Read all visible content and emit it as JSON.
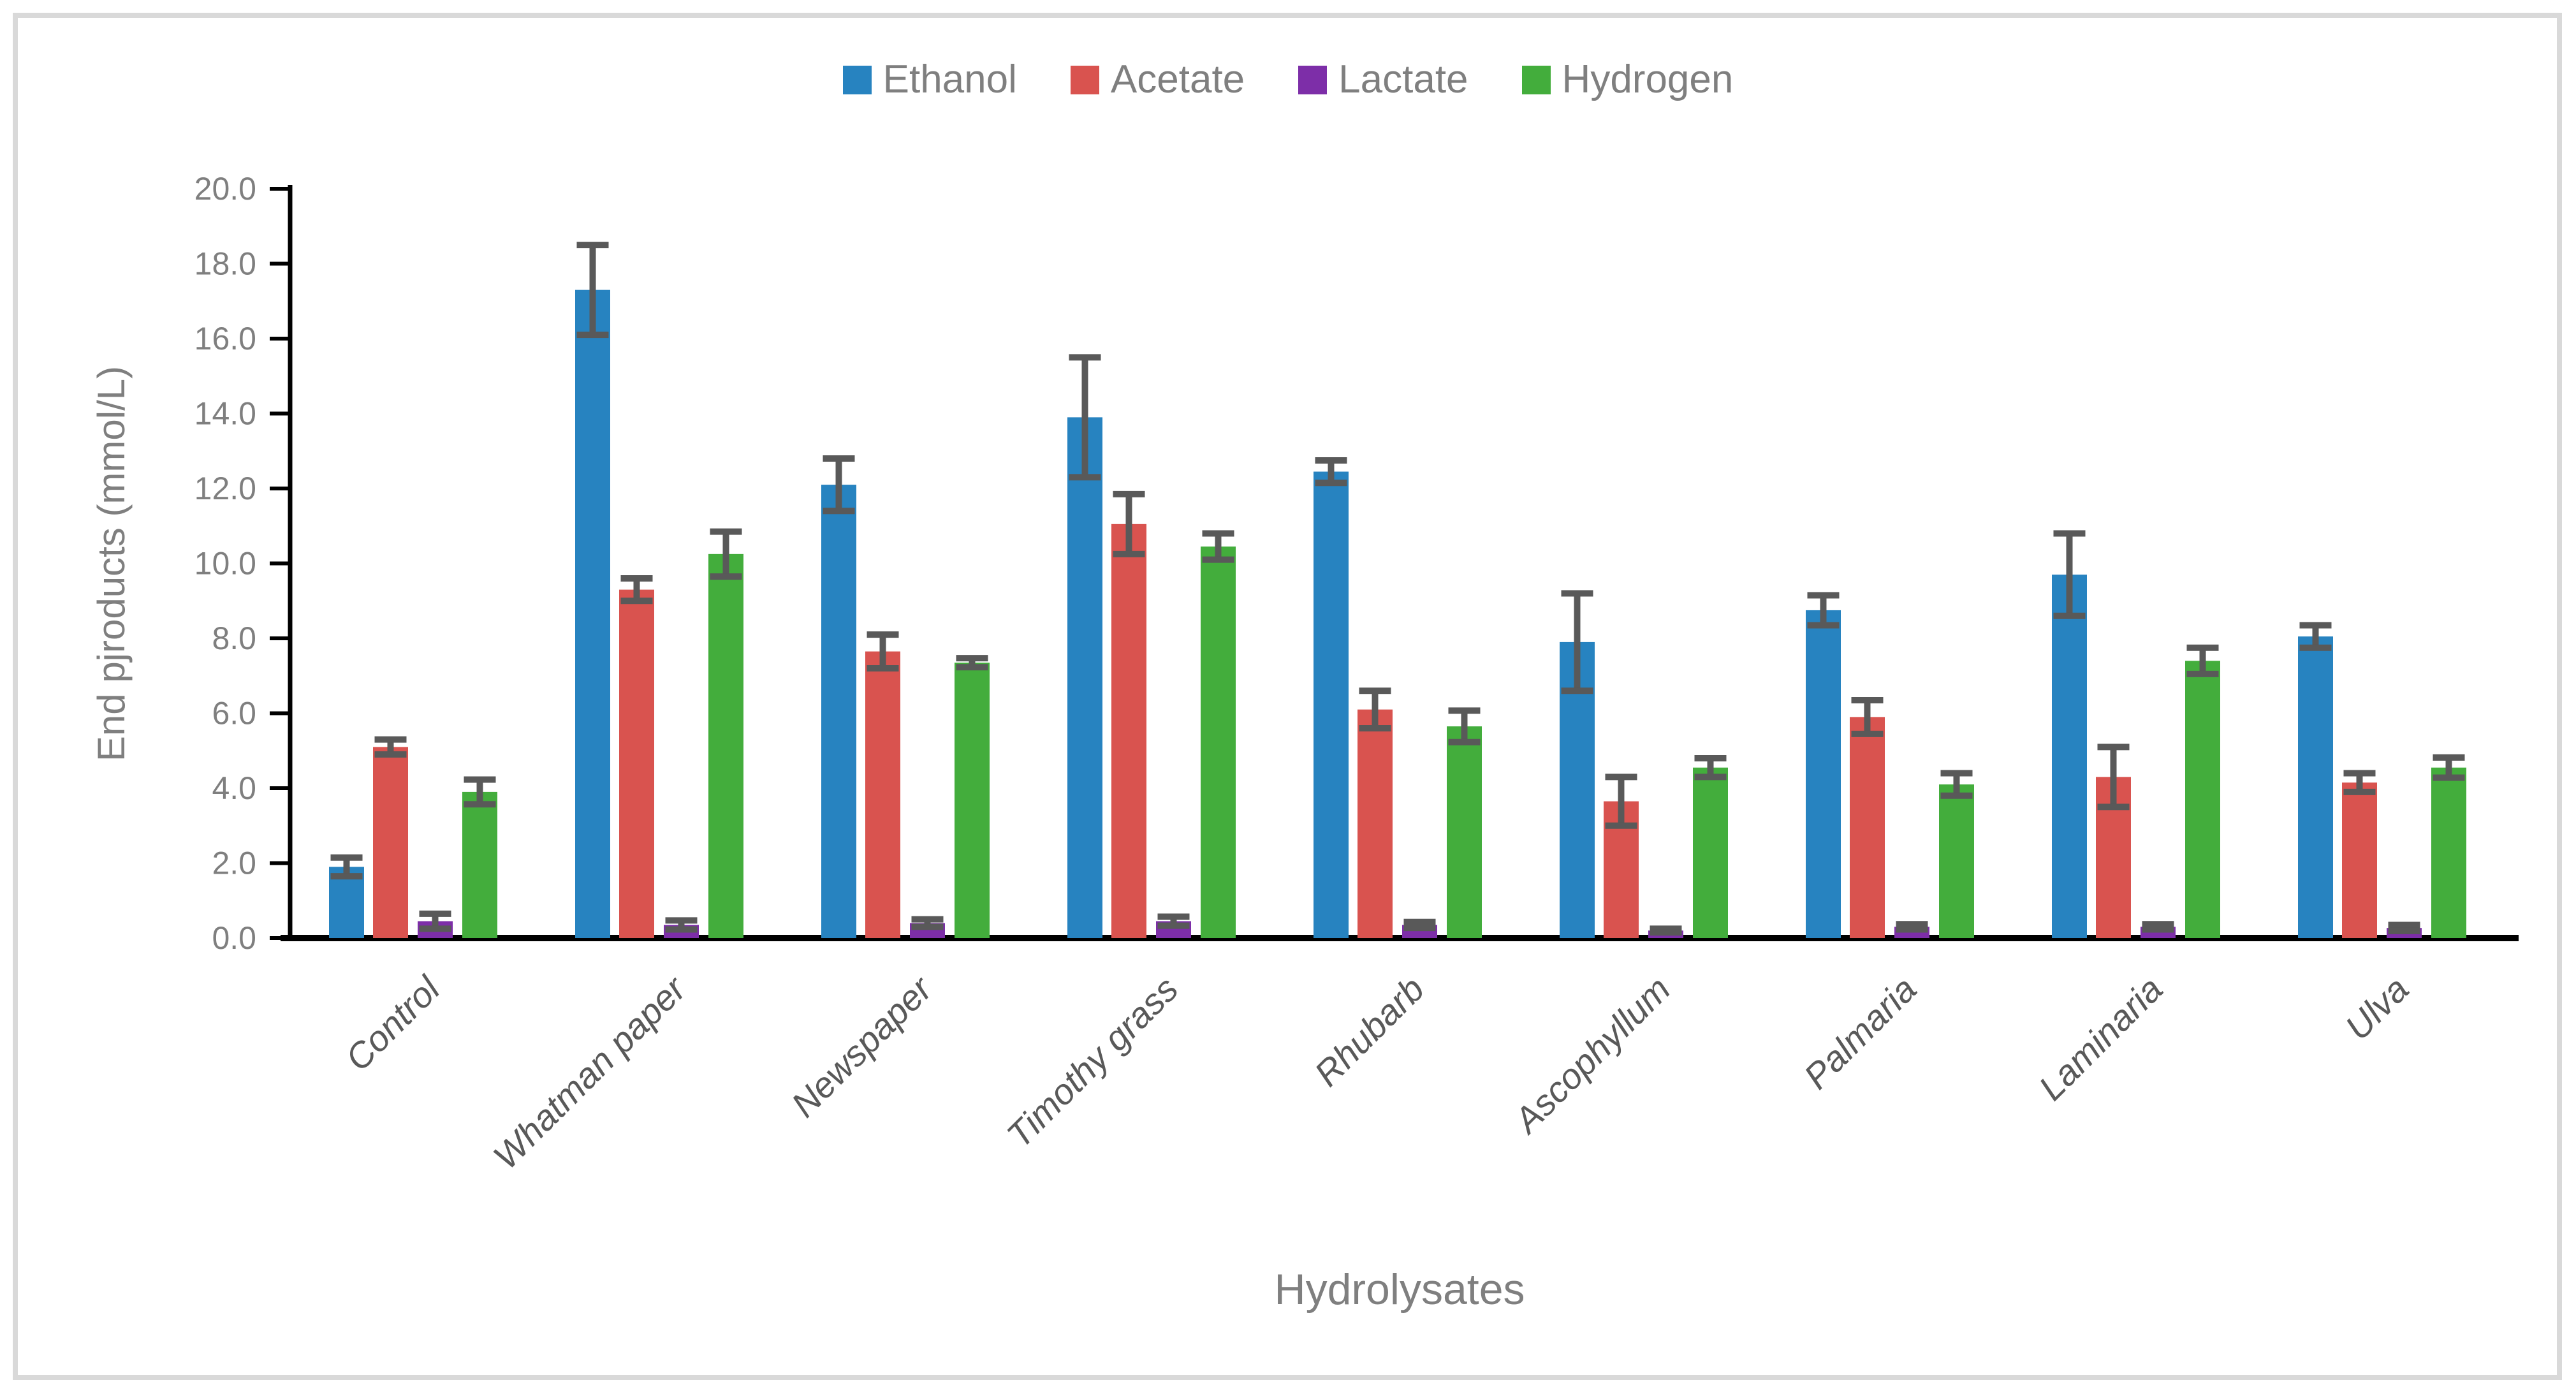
{
  "legend": {
    "items": [
      {
        "label": "Ethanol",
        "color": "#2783C0"
      },
      {
        "label": "Acetate",
        "color": "#D9534F"
      },
      {
        "label": "Lactate",
        "color": "#7D2EA8"
      },
      {
        "label": "Hydrogen",
        "color": "#43AD3C"
      }
    ]
  },
  "y_axis": {
    "title": "End pjroducts (mmol/L)",
    "tick_labels": [
      "0.0",
      "2.0",
      "4.0",
      "6.0",
      "8.0",
      "10.0",
      "12.0",
      "14.0",
      "16.0",
      "18.0",
      "20.0"
    ]
  },
  "x_axis": {
    "title": "Hydrolysates"
  },
  "colors": {
    "axis": "#000000",
    "error_bar": "#595959",
    "tick_text": "#7f7f7f",
    "category_text": "#595959",
    "border": "#d9d9d9"
  },
  "chart_data": {
    "type": "bar",
    "title": "",
    "xlabel": "Hydrolysates",
    "ylabel": "End pjroducts (mmol/L)",
    "ylim": [
      0,
      20
    ],
    "ytick_step": 2,
    "grid": false,
    "legend_position": "top",
    "error_bars": true,
    "categories": [
      "Control",
      "Whatman paper",
      "Newspaper",
      "Timothy grass",
      "Rhubarb",
      "Ascophyllum",
      "Palmaria",
      "Laminaria",
      "Ulva"
    ],
    "series": [
      {
        "name": "Ethanol",
        "color": "#2783C0",
        "values": [
          1.9,
          17.3,
          12.1,
          13.9,
          12.45,
          7.9,
          8.75,
          9.7,
          8.05
        ],
        "errors": [
          0.25,
          1.2,
          0.7,
          1.6,
          0.3,
          1.3,
          0.4,
          1.1,
          0.3
        ]
      },
      {
        "name": "Acetate",
        "color": "#D9534F",
        "values": [
          5.1,
          9.3,
          7.65,
          11.05,
          6.1,
          3.65,
          5.9,
          4.3,
          4.15
        ],
        "errors": [
          0.2,
          0.3,
          0.45,
          0.8,
          0.5,
          0.65,
          0.45,
          0.8,
          0.25
        ]
      },
      {
        "name": "Lactate",
        "color": "#7D2EA8",
        "values": [
          0.45,
          0.35,
          0.4,
          0.45,
          0.35,
          0.2,
          0.3,
          0.3,
          0.27
        ],
        "errors": [
          0.2,
          0.12,
          0.1,
          0.12,
          0.08,
          0.05,
          0.07,
          0.07,
          0.08
        ]
      },
      {
        "name": "Hydrogen",
        "color": "#43AD3C",
        "values": [
          3.9,
          10.25,
          7.35,
          10.45,
          5.65,
          4.55,
          4.1,
          7.4,
          4.55
        ],
        "errors": [
          0.33,
          0.6,
          0.12,
          0.35,
          0.42,
          0.25,
          0.3,
          0.35,
          0.27
        ]
      }
    ]
  }
}
